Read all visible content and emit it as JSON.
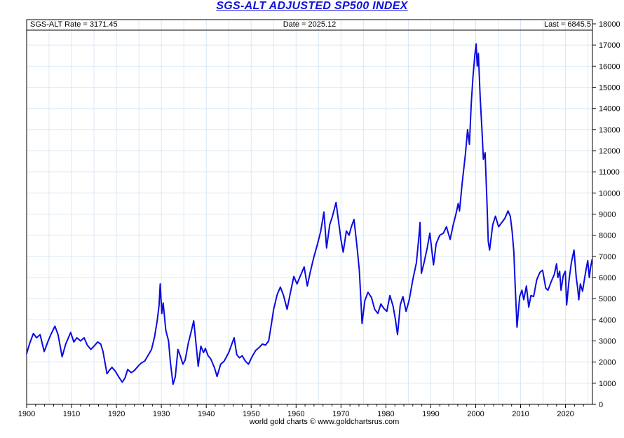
{
  "title": "SGS-ALT ADJUSTED SP500 INDEX",
  "header": {
    "left": "SGS-ALT Rate = 3171.45",
    "center": "Date = 2025.12",
    "right": "Last = 6845.5"
  },
  "footer": "world gold charts © www.goldchartsrus.com",
  "colors": {
    "title": "#1212d8",
    "line": "#0b0be0",
    "grid": "#d9e8f5",
    "axis": "#000000",
    "background": "#ffffff"
  },
  "chart_data": {
    "type": "line",
    "title": "SGS-ALT ADJUSTED SP500 INDEX",
    "xlabel": "",
    "ylabel": "",
    "xlim": [
      1900,
      2026
    ],
    "ylim": [
      0,
      18200
    ],
    "x_ticks": [
      1900,
      1910,
      1920,
      1930,
      1940,
      1950,
      1960,
      1970,
      1980,
      1990,
      2000,
      2010,
      2020
    ],
    "x_minor_tick_step": 2,
    "x_grid_step": 5,
    "y_ticks": [
      0,
      1000,
      2000,
      3000,
      4000,
      5000,
      6000,
      7000,
      8000,
      9000,
      10000,
      11000,
      12000,
      13000,
      14000,
      15000,
      16000,
      17000,
      18000
    ],
    "grid": true,
    "legend_position": "none",
    "series": [
      {
        "name": "SGS-ALT Adjusted SP500 Index",
        "color": "#0b0be0",
        "points": [
          [
            1900.0,
            2400
          ],
          [
            1900.7,
            2900
          ],
          [
            1901.5,
            3350
          ],
          [
            1902.2,
            3150
          ],
          [
            1903.0,
            3300
          ],
          [
            1903.9,
            2500
          ],
          [
            1904.8,
            3000
          ],
          [
            1905.5,
            3350
          ],
          [
            1906.3,
            3700
          ],
          [
            1907.0,
            3300
          ],
          [
            1907.9,
            2250
          ],
          [
            1908.7,
            2850
          ],
          [
            1909.8,
            3400
          ],
          [
            1910.5,
            2950
          ],
          [
            1911.2,
            3150
          ],
          [
            1912.0,
            3000
          ],
          [
            1912.8,
            3150
          ],
          [
            1913.5,
            2800
          ],
          [
            1914.3,
            2600
          ],
          [
            1915.0,
            2750
          ],
          [
            1915.8,
            2950
          ],
          [
            1916.5,
            2850
          ],
          [
            1917.0,
            2500
          ],
          [
            1917.9,
            1450
          ],
          [
            1918.4,
            1600
          ],
          [
            1919.0,
            1750
          ],
          [
            1919.8,
            1550
          ],
          [
            1920.5,
            1300
          ],
          [
            1921.3,
            1050
          ],
          [
            1921.9,
            1250
          ],
          [
            1922.5,
            1650
          ],
          [
            1923.3,
            1500
          ],
          [
            1924.0,
            1600
          ],
          [
            1924.8,
            1800
          ],
          [
            1925.5,
            1950
          ],
          [
            1926.3,
            2050
          ],
          [
            1927.0,
            2300
          ],
          [
            1927.8,
            2600
          ],
          [
            1928.5,
            3200
          ],
          [
            1929.1,
            4000
          ],
          [
            1929.5,
            4700
          ],
          [
            1929.75,
            5700
          ],
          [
            1930.1,
            4300
          ],
          [
            1930.4,
            4800
          ],
          [
            1931.0,
            3500
          ],
          [
            1931.6,
            3000
          ],
          [
            1932.0,
            2000
          ],
          [
            1932.6,
            950
          ],
          [
            1933.1,
            1300
          ],
          [
            1933.7,
            2600
          ],
          [
            1934.2,
            2300
          ],
          [
            1934.8,
            1900
          ],
          [
            1935.3,
            2100
          ],
          [
            1936.0,
            2900
          ],
          [
            1936.6,
            3400
          ],
          [
            1937.2,
            3950
          ],
          [
            1937.8,
            2700
          ],
          [
            1938.2,
            1800
          ],
          [
            1938.8,
            2750
          ],
          [
            1939.4,
            2450
          ],
          [
            1939.8,
            2650
          ],
          [
            1940.4,
            2300
          ],
          [
            1941.0,
            2150
          ],
          [
            1941.8,
            1750
          ],
          [
            1942.4,
            1320
          ],
          [
            1943.2,
            1900
          ],
          [
            1944.0,
            2050
          ],
          [
            1945.0,
            2450
          ],
          [
            1946.2,
            3150
          ],
          [
            1946.8,
            2350
          ],
          [
            1947.4,
            2200
          ],
          [
            1948.0,
            2300
          ],
          [
            1948.7,
            2050
          ],
          [
            1949.4,
            1900
          ],
          [
            1950.2,
            2250
          ],
          [
            1951.0,
            2550
          ],
          [
            1951.8,
            2700
          ],
          [
            1952.5,
            2850
          ],
          [
            1953.2,
            2800
          ],
          [
            1953.9,
            3000
          ],
          [
            1954.5,
            3800
          ],
          [
            1955.0,
            4500
          ],
          [
            1955.8,
            5200
          ],
          [
            1956.5,
            5550
          ],
          [
            1957.2,
            5150
          ],
          [
            1958.0,
            4500
          ],
          [
            1958.8,
            5350
          ],
          [
            1959.5,
            6050
          ],
          [
            1960.2,
            5700
          ],
          [
            1961.0,
            6100
          ],
          [
            1961.8,
            6500
          ],
          [
            1962.5,
            5600
          ],
          [
            1963.2,
            6300
          ],
          [
            1964.0,
            7000
          ],
          [
            1964.8,
            7600
          ],
          [
            1965.5,
            8200
          ],
          [
            1966.2,
            9100
          ],
          [
            1966.8,
            7400
          ],
          [
            1967.5,
            8500
          ],
          [
            1968.1,
            8900
          ],
          [
            1968.9,
            9550
          ],
          [
            1969.5,
            8600
          ],
          [
            1970.0,
            7800
          ],
          [
            1970.5,
            7200
          ],
          [
            1971.2,
            8200
          ],
          [
            1971.8,
            8000
          ],
          [
            1972.3,
            8400
          ],
          [
            1972.9,
            8750
          ],
          [
            1973.6,
            7400
          ],
          [
            1974.1,
            6300
          ],
          [
            1974.7,
            3830
          ],
          [
            1975.3,
            4900
          ],
          [
            1976.0,
            5300
          ],
          [
            1976.8,
            5050
          ],
          [
            1977.5,
            4500
          ],
          [
            1978.2,
            4300
          ],
          [
            1978.9,
            4750
          ],
          [
            1979.5,
            4550
          ],
          [
            1980.2,
            4400
          ],
          [
            1980.9,
            5150
          ],
          [
            1981.6,
            4650
          ],
          [
            1982.1,
            4050
          ],
          [
            1982.6,
            3300
          ],
          [
            1983.2,
            4700
          ],
          [
            1983.8,
            5100
          ],
          [
            1984.5,
            4400
          ],
          [
            1985.2,
            4950
          ],
          [
            1986.0,
            5900
          ],
          [
            1986.8,
            6700
          ],
          [
            1987.3,
            7800
          ],
          [
            1987.6,
            8600
          ],
          [
            1987.9,
            6200
          ],
          [
            1988.5,
            6700
          ],
          [
            1989.2,
            7400
          ],
          [
            1989.8,
            8100
          ],
          [
            1990.6,
            6600
          ],
          [
            1991.2,
            7600
          ],
          [
            1992.0,
            8000
          ],
          [
            1992.8,
            8100
          ],
          [
            1993.5,
            8400
          ],
          [
            1994.3,
            7800
          ],
          [
            1995.0,
            8500
          ],
          [
            1995.6,
            9000
          ],
          [
            1996.1,
            9500
          ],
          [
            1996.4,
            9150
          ],
          [
            1997.0,
            10500
          ],
          [
            1997.7,
            11800
          ],
          [
            1998.2,
            13000
          ],
          [
            1998.6,
            12300
          ],
          [
            1999.0,
            14200
          ],
          [
            1999.4,
            15500
          ],
          [
            1999.8,
            16500
          ],
          [
            2000.1,
            17050
          ],
          [
            2000.35,
            16000
          ],
          [
            2000.6,
            16600
          ],
          [
            2001.0,
            14500
          ],
          [
            2001.4,
            13000
          ],
          [
            2001.7,
            11600
          ],
          [
            2002.1,
            11900
          ],
          [
            2002.5,
            9600
          ],
          [
            2002.8,
            7700
          ],
          [
            2003.1,
            7300
          ],
          [
            2003.8,
            8500
          ],
          [
            2004.4,
            8900
          ],
          [
            2005.1,
            8400
          ],
          [
            2005.8,
            8600
          ],
          [
            2006.5,
            8800
          ],
          [
            2007.2,
            9150
          ],
          [
            2007.7,
            8900
          ],
          [
            2008.1,
            8200
          ],
          [
            2008.5,
            7200
          ],
          [
            2008.8,
            5600
          ],
          [
            2009.2,
            3650
          ],
          [
            2009.8,
            5100
          ],
          [
            2010.3,
            5400
          ],
          [
            2010.7,
            4950
          ],
          [
            2011.3,
            5600
          ],
          [
            2011.8,
            4600
          ],
          [
            2012.3,
            5150
          ],
          [
            2012.9,
            5100
          ],
          [
            2013.6,
            5900
          ],
          [
            2014.3,
            6250
          ],
          [
            2014.9,
            6350
          ],
          [
            2015.6,
            5500
          ],
          [
            2016.1,
            5400
          ],
          [
            2016.8,
            5800
          ],
          [
            2017.5,
            6150
          ],
          [
            2018.0,
            6650
          ],
          [
            2018.3,
            6000
          ],
          [
            2018.7,
            6300
          ],
          [
            2019.0,
            5400
          ],
          [
            2019.5,
            6100
          ],
          [
            2019.95,
            6300
          ],
          [
            2020.25,
            4700
          ],
          [
            2020.8,
            5900
          ],
          [
            2021.3,
            6700
          ],
          [
            2021.9,
            7300
          ],
          [
            2022.4,
            6000
          ],
          [
            2022.7,
            5500
          ],
          [
            2022.95,
            4950
          ],
          [
            2023.3,
            5700
          ],
          [
            2023.8,
            5350
          ],
          [
            2024.2,
            5900
          ],
          [
            2024.6,
            6400
          ],
          [
            2024.95,
            6800
          ],
          [
            2025.3,
            6000
          ],
          [
            2025.6,
            6500
          ],
          [
            2025.92,
            6845.5
          ]
        ]
      }
    ]
  }
}
